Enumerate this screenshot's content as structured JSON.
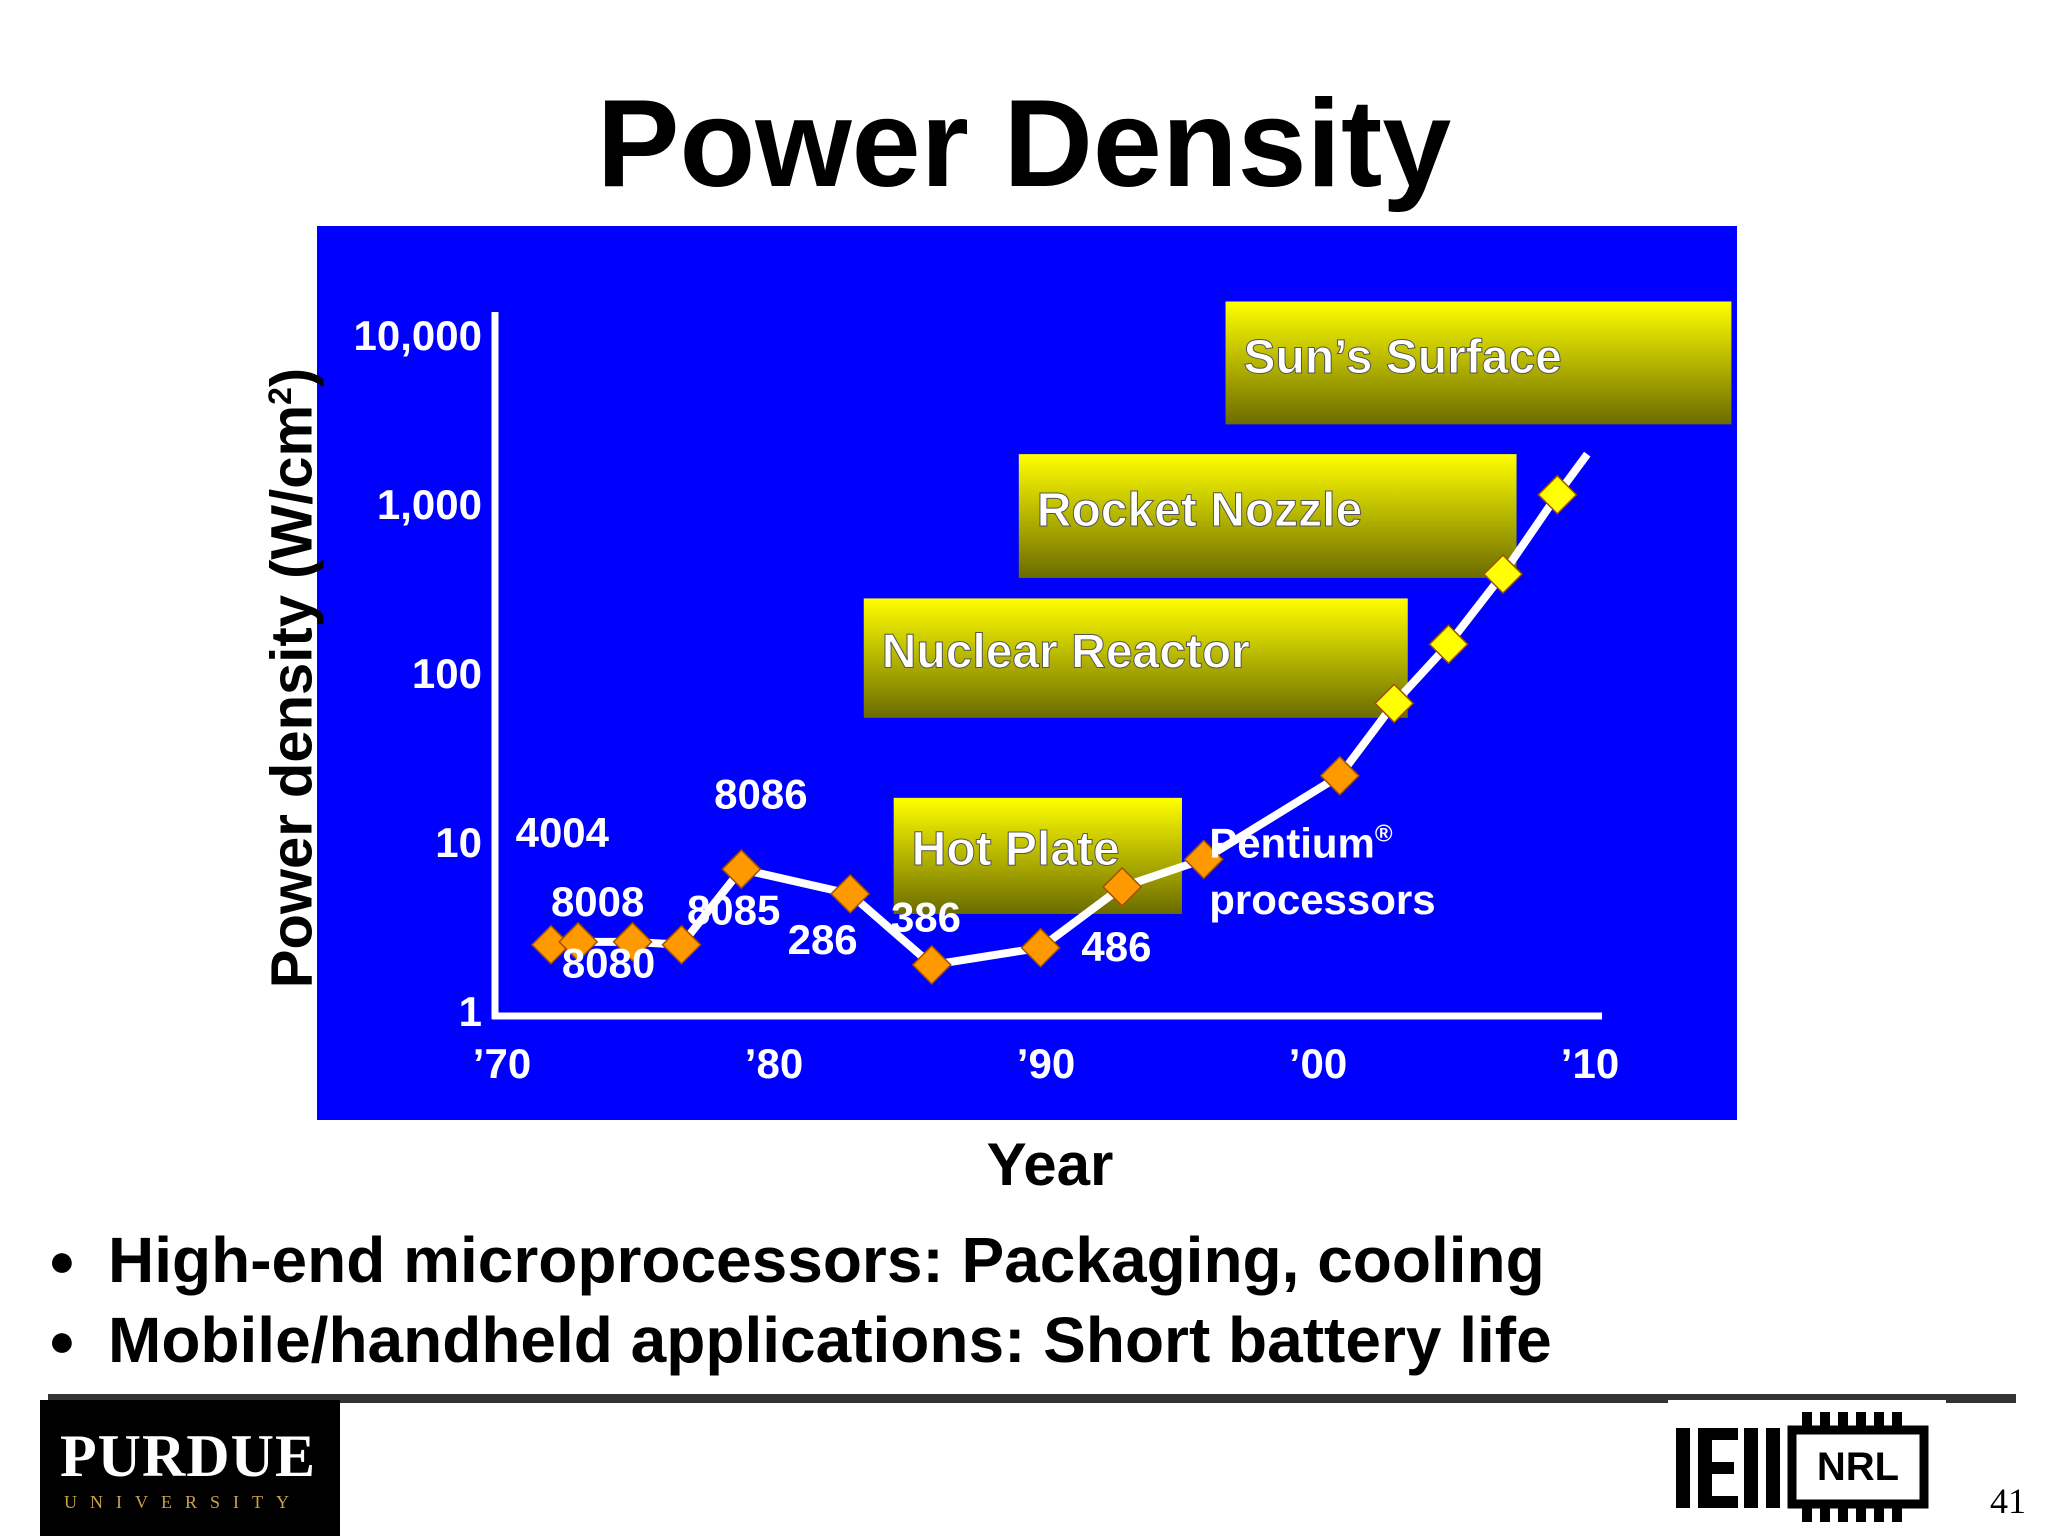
{
  "slide": {
    "title": "Power Density",
    "bullets": [
      "High-end microprocessors: Packaging, cooling",
      "Mobile/handheld applications: Short battery life"
    ],
    "page_number": "41",
    "logos": {
      "purdue_name": "PURDUE",
      "purdue_sub": "UNIVERSITY",
      "nrl": "NRL"
    }
  },
  "chart_data": {
    "type": "line",
    "title": "",
    "xlabel": "Year",
    "ylabel_main": "Power density (W/cm",
    "ylabel_sup": "2",
    "ylabel_tail": ")",
    "y_scale": "log",
    "xlim": [
      1970,
      2010
    ],
    "ylim": [
      1,
      10000
    ],
    "x_ticks": [
      {
        "value": 1970,
        "label": "’70"
      },
      {
        "value": 1980,
        "label": "’80"
      },
      {
        "value": 1990,
        "label": "’90"
      },
      {
        "value": 2000,
        "label": "’00"
      },
      {
        "value": 2010,
        "label": "’10"
      }
    ],
    "y_ticks": [
      {
        "value": 1,
        "label": "1"
      },
      {
        "value": 10,
        "label": "10"
      },
      {
        "value": 100,
        "label": "100"
      },
      {
        "value": 1000,
        "label": "1,000"
      },
      {
        "value": 10000,
        "label": "10,000"
      }
    ],
    "grid": false,
    "background": "#0000ff",
    "line_color": "#ffffff",
    "marker_color_measured": "#ff9900",
    "marker_color_projected": "#ffff00",
    "points": [
      {
        "x": 1971.8,
        "y": 2.5,
        "kind": "measured"
      },
      {
        "x": 1972.8,
        "y": 2.6,
        "kind": "measured"
      },
      {
        "x": 1974.8,
        "y": 2.6,
        "kind": "measured"
      },
      {
        "x": 1976.6,
        "y": 2.5,
        "kind": "measured"
      },
      {
        "x": 1978.8,
        "y": 7.0,
        "kind": "measured"
      },
      {
        "x": 1982.8,
        "y": 5.0,
        "kind": "measured"
      },
      {
        "x": 1985.8,
        "y": 1.9,
        "kind": "measured"
      },
      {
        "x": 1989.8,
        "y": 2.4,
        "kind": "measured"
      },
      {
        "x": 1992.8,
        "y": 5.5,
        "kind": "measured"
      },
      {
        "x": 1995.8,
        "y": 8.0,
        "kind": "measured"
      },
      {
        "x": 2000.8,
        "y": 25,
        "kind": "measured"
      },
      {
        "x": 2002.8,
        "y": 67,
        "kind": "projected"
      },
      {
        "x": 2004.8,
        "y": 150,
        "kind": "projected"
      },
      {
        "x": 2006.8,
        "y": 390,
        "kind": "projected"
      },
      {
        "x": 2008.8,
        "y": 1150,
        "kind": "projected"
      }
    ],
    "line_end": {
      "x": 2009.9,
      "y": 2000
    },
    "point_labels": [
      {
        "text": "4004",
        "x": 1970.5,
        "y": 9.5
      },
      {
        "text": "8008",
        "x": 1971.8,
        "y": 3.7
      },
      {
        "text": "8085",
        "x": 1976.8,
        "y": 3.3
      },
      {
        "text": "8080",
        "x": 1972.2,
        "y": 1.6
      },
      {
        "text": "8086",
        "x": 1977.8,
        "y": 16
      },
      {
        "text": "286",
        "x": 1980.5,
        "y": 2.2
      },
      {
        "text": "386",
        "x": 1984.3,
        "y": 3.0
      },
      {
        "text": "486",
        "x": 1991.3,
        "y": 2.0
      }
    ],
    "annotations": [
      {
        "kind": "box",
        "text": "Hot Plate",
        "x1": 1984.4,
        "y1": 18.5,
        "x2": 1995.0,
        "y2": 3.8
      },
      {
        "kind": "box",
        "text": "Nuclear Reactor",
        "x1": 1983.3,
        "y1": 280,
        "x2": 2003.3,
        "y2": 55
      },
      {
        "kind": "box",
        "text": "Rocket Nozzle",
        "x1": 1989.0,
        "y1": 2000,
        "x2": 2007.3,
        "y2": 370
      },
      {
        "kind": "box",
        "text": "Sun’s Surface",
        "x1": 1996.6,
        "y1": 16000,
        "x2": 2015.2,
        "y2": 3000
      },
      {
        "kind": "text",
        "text": "Pentium",
        "mark": "®",
        "x": 1996.0,
        "y": 8.2
      },
      {
        "kind": "text",
        "text": "processors",
        "x": 1996.0,
        "y": 3.8
      }
    ]
  }
}
